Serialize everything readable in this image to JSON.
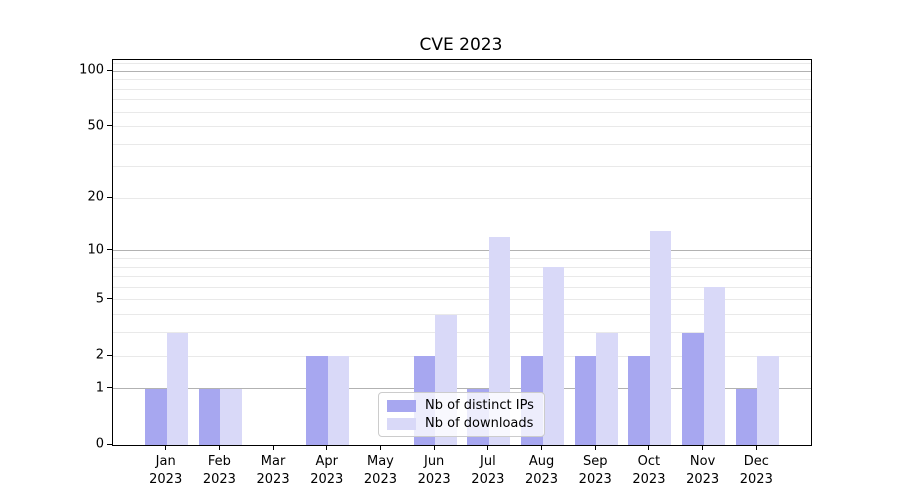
{
  "title": "CVE 2023",
  "chart_data": {
    "type": "bar",
    "title": "CVE 2023",
    "categories": [
      "Jan 2023",
      "Feb 2023",
      "Mar 2023",
      "Apr 2023",
      "May 2023",
      "Jun 2023",
      "Jul 2023",
      "Aug 2023",
      "Sep 2023",
      "Oct 2023",
      "Nov 2023",
      "Dec 2023"
    ],
    "series": [
      {
        "name": "Nb of distinct IPs",
        "color": "#a7a7f0",
        "values": [
          1,
          1,
          0,
          2,
          0,
          2,
          1,
          2,
          2,
          2,
          3,
          1
        ]
      },
      {
        "name": "Nb of downloads",
        "color": "#d9d9f8",
        "values": [
          3,
          1,
          0,
          2,
          0,
          4,
          12,
          8,
          3,
          13,
          6,
          2
        ]
      }
    ],
    "yscale": "log1p",
    "ylim": [
      0,
      115
    ],
    "yticks": [
      0,
      1,
      2,
      5,
      10,
      20,
      50,
      100
    ],
    "grid_major": [
      1,
      10,
      100
    ],
    "grid_minor": [
      2,
      3,
      4,
      5,
      6,
      7,
      8,
      9,
      20,
      30,
      40,
      50,
      60,
      70,
      80,
      90,
      110
    ],
    "xlabel": "",
    "ylabel": "",
    "legend_position": "lower center",
    "grid": "horizontal"
  }
}
